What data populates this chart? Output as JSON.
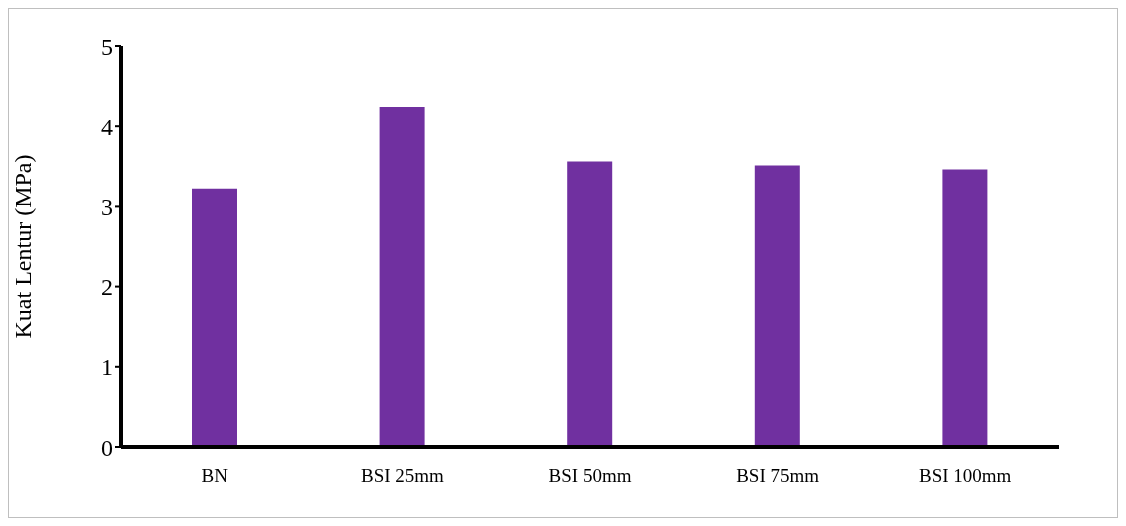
{
  "chart_data": {
    "type": "bar",
    "ylabel": "Kuat Lentur  (MPa)",
    "categories": [
      "BN",
      "BSI 25mm",
      "BSI 50mm",
      "BSI 75mm",
      "BSI 100mm"
    ],
    "values": [
      3.22,
      4.24,
      3.56,
      3.51,
      3.46
    ],
    "color": "#7030a0",
    "ylim": [
      0,
      5
    ],
    "yticks": [
      0,
      1,
      2,
      3,
      4,
      5
    ],
    "grid": false,
    "legend": false
  }
}
